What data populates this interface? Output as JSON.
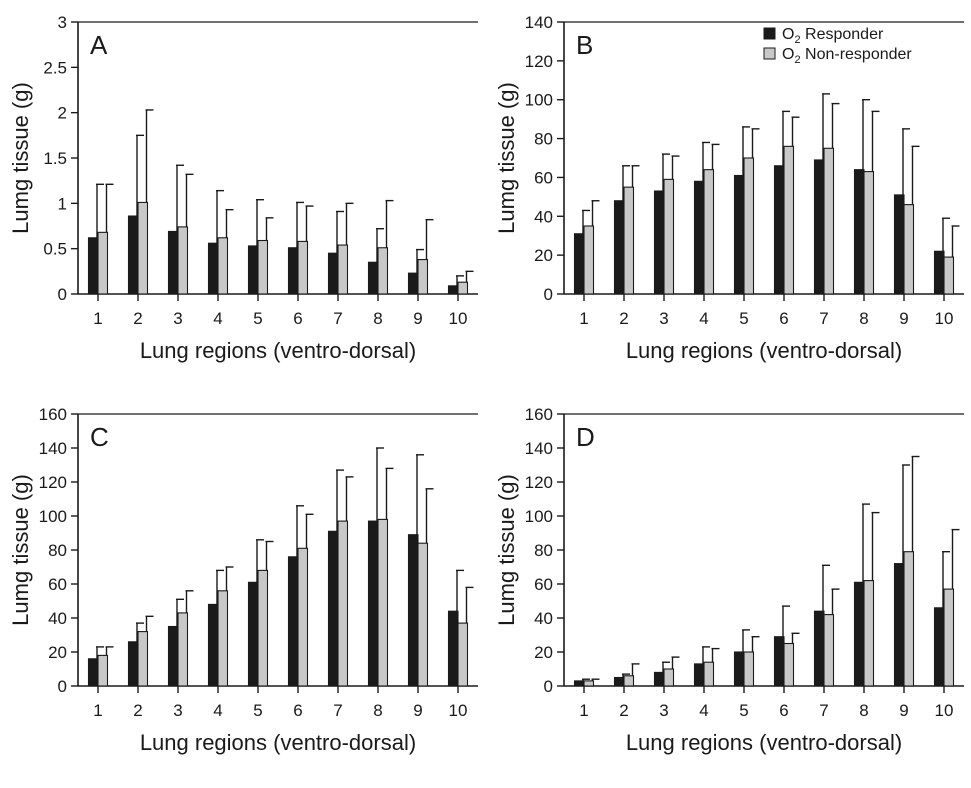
{
  "figure": {
    "legend": {
      "series": [
        {
          "label": "O",
          "sub": "2",
          "rest": " Responder",
          "color": "#1a1a1a"
        },
        {
          "label": "O",
          "sub": "2",
          "rest": " Non-responder",
          "color": "#c8c8c8"
        }
      ]
    }
  },
  "chart_data": [
    {
      "type": "bar",
      "panel": "A",
      "xlabel": "Lung regions (ventro-dorsal)",
      "ylabel": "Lumg tissue (g)",
      "categories": [
        "1",
        "2",
        "3",
        "4",
        "5",
        "6",
        "7",
        "8",
        "9",
        "10"
      ],
      "ylim": [
        0,
        3
      ],
      "yticks": [
        0,
        0.5,
        1,
        1.5,
        2,
        2.5,
        3
      ],
      "ytick_labels": [
        "0",
        "0.5",
        "1",
        "1.5",
        "2",
        "2.5",
        "3"
      ],
      "series": [
        {
          "name": "O2 Responder",
          "values": [
            0.62,
            0.86,
            0.69,
            0.56,
            0.53,
            0.51,
            0.45,
            0.35,
            0.23,
            0.09
          ],
          "errors": [
            0.59,
            0.89,
            0.73,
            0.58,
            0.51,
            0.5,
            0.46,
            0.37,
            0.26,
            0.11
          ]
        },
        {
          "name": "O2 Non-responder",
          "values": [
            0.68,
            1.01,
            0.74,
            0.62,
            0.59,
            0.58,
            0.54,
            0.51,
            0.38,
            0.13
          ],
          "errors": [
            0.53,
            1.02,
            0.58,
            0.31,
            0.25,
            0.39,
            0.46,
            0.52,
            0.44,
            0.12
          ]
        }
      ]
    },
    {
      "type": "bar",
      "panel": "B",
      "xlabel": "Lung regions (ventro-dorsal)",
      "ylabel": "Lumg tissue (g)",
      "categories": [
        "1",
        "2",
        "3",
        "4",
        "5",
        "6",
        "7",
        "8",
        "9",
        "10"
      ],
      "ylim": [
        0,
        140
      ],
      "yticks": [
        0,
        20,
        40,
        60,
        80,
        100,
        120,
        140
      ],
      "ytick_labels": [
        "0",
        "20",
        "40",
        "60",
        "80",
        "100",
        "120",
        "140"
      ],
      "series": [
        {
          "name": "O2 Responder",
          "values": [
            31,
            48,
            53,
            58,
            61,
            66,
            69,
            64,
            51,
            22
          ],
          "errors": [
            12,
            18,
            19,
            20,
            25,
            28,
            34,
            36,
            34,
            17
          ]
        },
        {
          "name": "O2 Non-responder",
          "values": [
            35,
            55,
            59,
            64,
            70,
            76,
            75,
            63,
            46,
            19
          ],
          "errors": [
            13,
            11,
            12,
            13,
            15,
            15,
            23,
            31,
            30,
            16
          ]
        }
      ]
    },
    {
      "type": "bar",
      "panel": "C",
      "xlabel": "Lung regions (ventro-dorsal)",
      "ylabel": "Lumg tissue (g)",
      "categories": [
        "1",
        "2",
        "3",
        "4",
        "5",
        "6",
        "7",
        "8",
        "9",
        "10"
      ],
      "ylim": [
        0,
        160
      ],
      "yticks": [
        0,
        20,
        40,
        60,
        80,
        100,
        120,
        140,
        160
      ],
      "ytick_labels": [
        "0",
        "20",
        "40",
        "60",
        "80",
        "100",
        "120",
        "140",
        "160"
      ],
      "series": [
        {
          "name": "O2 Responder",
          "values": [
            16,
            26,
            35,
            48,
            61,
            76,
            91,
            97,
            89,
            44
          ],
          "errors": [
            7,
            11,
            16,
            20,
            25,
            30,
            36,
            43,
            47,
            24
          ]
        },
        {
          "name": "O2 Non-responder",
          "values": [
            18,
            32,
            43,
            56,
            68,
            81,
            97,
            98,
            84,
            37
          ],
          "errors": [
            5,
            9,
            13,
            14,
            17,
            20,
            26,
            30,
            32,
            21
          ]
        }
      ]
    },
    {
      "type": "bar",
      "panel": "D",
      "xlabel": "Lung regions (ventro-dorsal)",
      "ylabel": "Lumg tissue (g)",
      "categories": [
        "1",
        "2",
        "3",
        "4",
        "5",
        "6",
        "7",
        "8",
        "9",
        "10"
      ],
      "ylim": [
        0,
        160
      ],
      "yticks": [
        0,
        20,
        40,
        60,
        80,
        100,
        120,
        140,
        160
      ],
      "ytick_labels": [
        "0",
        "20",
        "40",
        "60",
        "80",
        "100",
        "120",
        "140",
        "160"
      ],
      "series": [
        {
          "name": "O2 Responder",
          "values": [
            3,
            5,
            8,
            13,
            20,
            29,
            44,
            61,
            72,
            46
          ],
          "errors": [
            1,
            2,
            6,
            10,
            13,
            18,
            27,
            46,
            58,
            33
          ]
        },
        {
          "name": "O2 Non-responder",
          "values": [
            3,
            6,
            10,
            14,
            20,
            25,
            42,
            62,
            79,
            57
          ],
          "errors": [
            1,
            7,
            7,
            8,
            9,
            6,
            15,
            40,
            56,
            35
          ]
        }
      ]
    }
  ]
}
